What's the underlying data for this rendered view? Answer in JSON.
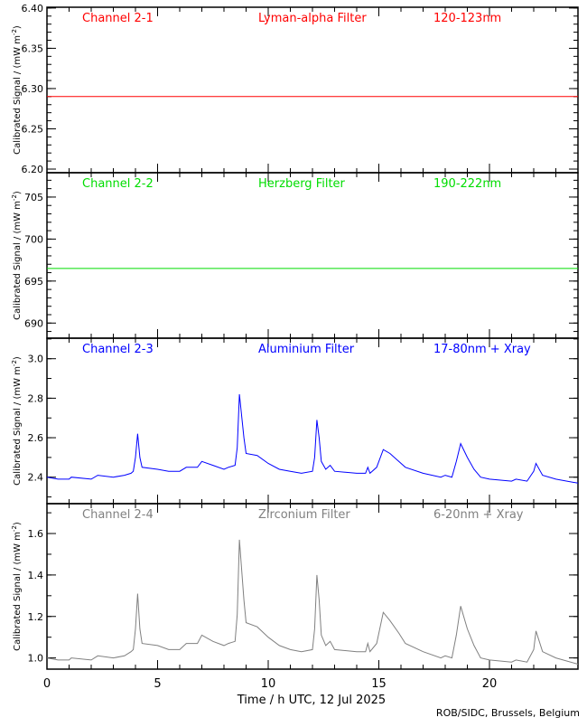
{
  "chart_data": {
    "type": "line",
    "xlabel": "Time / h UTC, 12 Jul 2025",
    "xlim": [
      0,
      24
    ],
    "xticks": [
      0,
      5,
      10,
      15,
      20
    ],
    "credit": "ROB/SIDC, Brussels, Belgium",
    "ylabel": "Calibrated Signal / (mW m",
    "ylabel_sup": "-2",
    "ylabel_close": ")",
    "panels": [
      {
        "channel": "Channel 2-1",
        "filter": "Lyman-alpha Filter",
        "band": "120-123nm",
        "color": "#ff0000",
        "ylim": [
          6.1955,
          6.401
        ],
        "yticks": [
          6.2,
          6.25,
          6.3,
          6.35,
          6.4
        ],
        "ytick_labels": [
          "6.20",
          "6.25",
          "6.30",
          "6.35",
          "6.40"
        ],
        "minor_step": 0.01,
        "x": [
          0,
          24
        ],
        "values": [
          6.29,
          6.29
        ]
      },
      {
        "channel": "Channel 2-2",
        "filter": "Herzberg Filter",
        "band": "190-222nm",
        "color": "#00dd00",
        "ylim": [
          688.2,
          707.9
        ],
        "yticks": [
          690,
          695,
          700,
          705
        ],
        "ytick_labels": [
          "690",
          "695",
          "700",
          "705"
        ],
        "minor_step": 1,
        "x": [
          0,
          24
        ],
        "values": [
          696.5,
          696.5
        ]
      },
      {
        "channel": "Channel 2-3",
        "filter": "Aluminium Filter",
        "band": "17-80nm + Xray",
        "color": "#0000ff",
        "ylim": [
          2.266,
          3.104
        ],
        "yticks": [
          2.4,
          2.6,
          2.8,
          3.0
        ],
        "ytick_labels": [
          "2.4",
          "2.6",
          "2.8",
          "3.0"
        ],
        "minor_step": 0.1,
        "x": [
          0,
          0.5,
          1,
          1.1,
          2,
          2.3,
          3,
          3.5,
          3.8,
          3.9,
          4.0,
          4.1,
          4.2,
          4.3,
          5,
          5.5,
          6,
          6.3,
          6.8,
          7,
          7.5,
          8,
          8.2,
          8.5,
          8.6,
          8.7,
          8.9,
          9.0,
          9.5,
          10,
          10.5,
          11,
          11.5,
          12,
          12.1,
          12.2,
          12.3,
          12.4,
          12.6,
          12.8,
          13,
          14,
          14.4,
          14.5,
          14.6,
          14.9,
          15.2,
          15.5,
          15.9,
          16.2,
          17,
          17.8,
          18,
          18.3,
          18.5,
          18.7,
          19,
          19.3,
          19.6,
          20,
          21,
          21.2,
          21.7,
          22,
          22.1,
          22.4,
          23,
          24
        ],
        "values": [
          2.4,
          2.39,
          2.39,
          2.4,
          2.39,
          2.41,
          2.4,
          2.41,
          2.42,
          2.43,
          2.5,
          2.62,
          2.5,
          2.45,
          2.44,
          2.43,
          2.43,
          2.45,
          2.45,
          2.48,
          2.46,
          2.44,
          2.45,
          2.46,
          2.55,
          2.82,
          2.6,
          2.52,
          2.51,
          2.47,
          2.44,
          2.43,
          2.42,
          2.43,
          2.5,
          2.69,
          2.6,
          2.48,
          2.44,
          2.46,
          2.43,
          2.42,
          2.42,
          2.45,
          2.42,
          2.45,
          2.54,
          2.52,
          2.48,
          2.45,
          2.42,
          2.4,
          2.41,
          2.4,
          2.48,
          2.57,
          2.5,
          2.44,
          2.4,
          2.39,
          2.38,
          2.39,
          2.38,
          2.43,
          2.47,
          2.41,
          2.39,
          2.37
        ]
      },
      {
        "channel": "Channel 2-4",
        "filter": "Zirconium Filter",
        "band": "6-20nm + Xray",
        "color": "#808080",
        "ylim": [
          0.946,
          1.744
        ],
        "yticks": [
          1.0,
          1.2,
          1.4,
          1.6
        ],
        "ytick_labels": [
          "1.0",
          "1.2",
          "1.4",
          "1.6"
        ],
        "minor_step": 0.1,
        "x": [
          0,
          0.5,
          1,
          1.1,
          2,
          2.3,
          3,
          3.5,
          3.8,
          3.9,
          4.0,
          4.1,
          4.2,
          4.3,
          5,
          5.5,
          6,
          6.3,
          6.8,
          7,
          7.5,
          8,
          8.2,
          8.5,
          8.6,
          8.7,
          8.9,
          9.0,
          9.5,
          10,
          10.5,
          11,
          11.5,
          12,
          12.1,
          12.2,
          12.3,
          12.4,
          12.6,
          12.8,
          13,
          14,
          14.4,
          14.5,
          14.6,
          14.9,
          15.2,
          15.5,
          15.9,
          16.2,
          17,
          17.8,
          18,
          18.3,
          18.5,
          18.7,
          19,
          19.3,
          19.6,
          20,
          21,
          21.2,
          21.7,
          22,
          22.1,
          22.4,
          23,
          24
        ],
        "values": [
          1.0,
          0.99,
          0.99,
          1.0,
          0.99,
          1.01,
          1.0,
          1.01,
          1.03,
          1.04,
          1.14,
          1.31,
          1.14,
          1.07,
          1.06,
          1.04,
          1.04,
          1.07,
          1.07,
          1.11,
          1.08,
          1.06,
          1.07,
          1.08,
          1.21,
          1.57,
          1.28,
          1.17,
          1.15,
          1.1,
          1.06,
          1.04,
          1.03,
          1.04,
          1.14,
          1.4,
          1.28,
          1.11,
          1.06,
          1.08,
          1.04,
          1.03,
          1.03,
          1.07,
          1.03,
          1.07,
          1.22,
          1.18,
          1.12,
          1.07,
          1.03,
          1.0,
          1.01,
          1.0,
          1.11,
          1.25,
          1.14,
          1.06,
          1.0,
          0.99,
          0.98,
          0.99,
          0.98,
          1.04,
          1.13,
          1.03,
          1.0,
          0.97
        ]
      }
    ]
  }
}
